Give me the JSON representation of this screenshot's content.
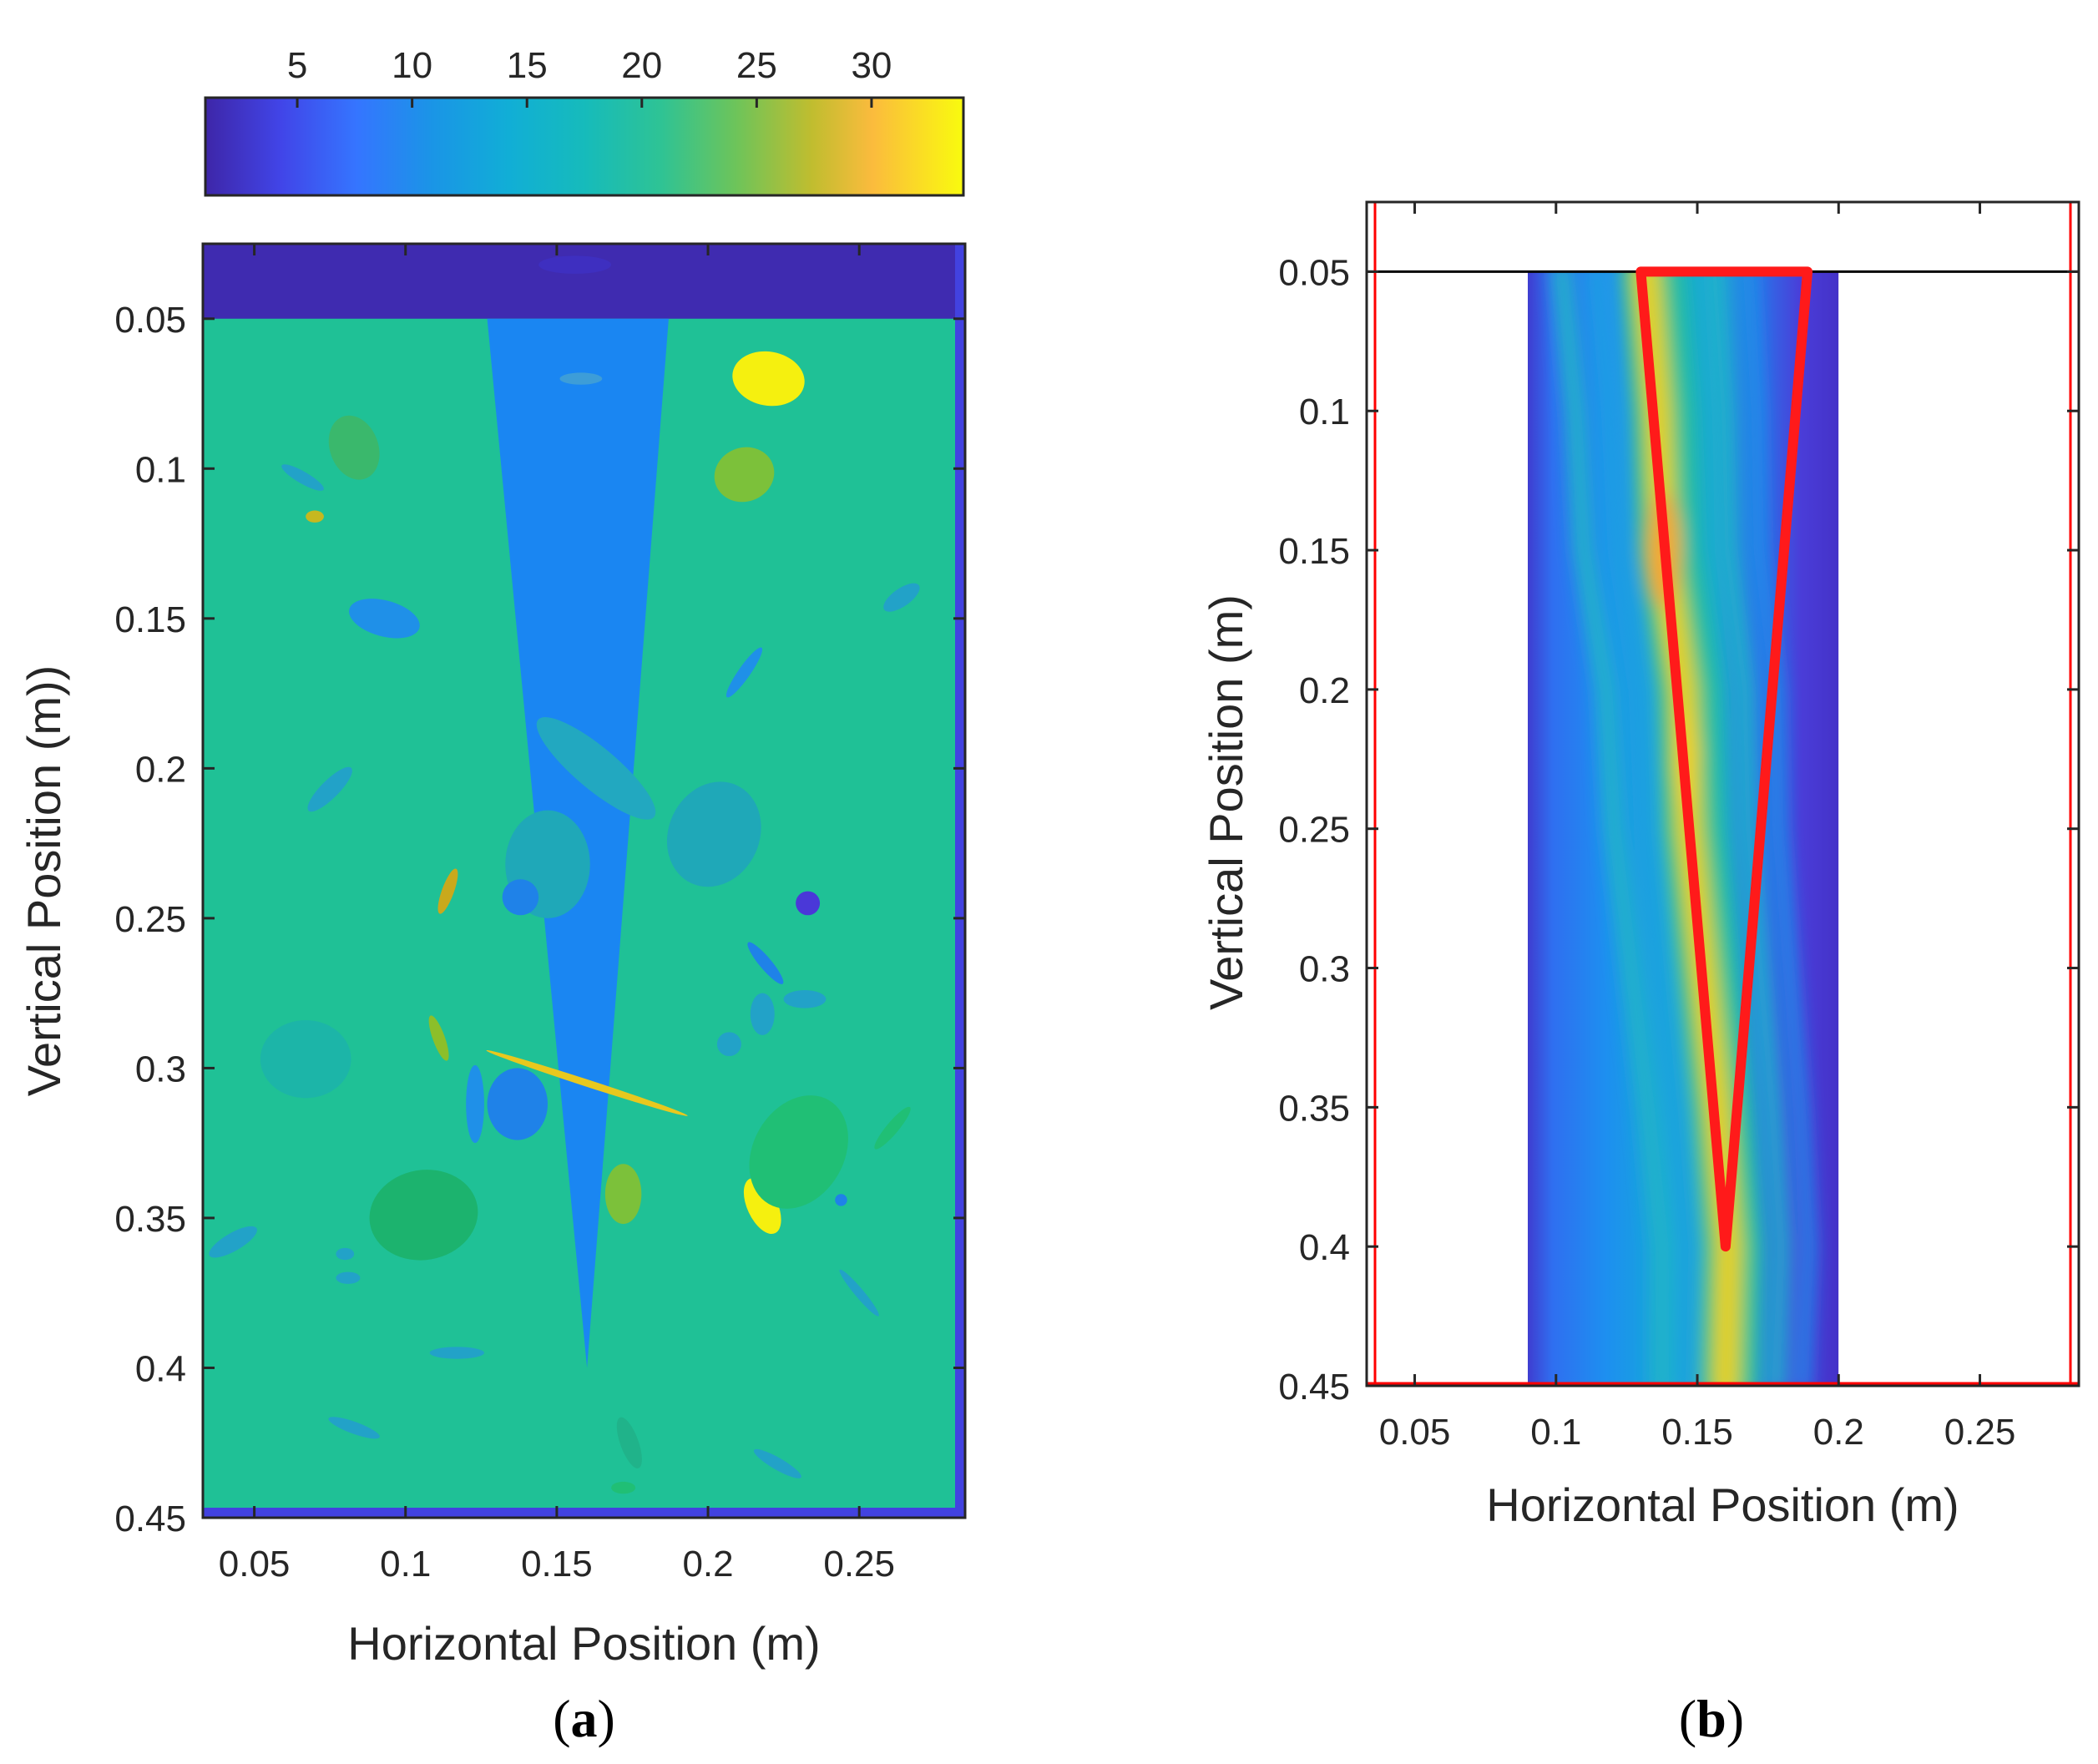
{
  "chart_data": [
    {
      "panel": "a",
      "type": "heatmap",
      "panel_label_open": "(",
      "panel_label_letter": "a",
      "panel_label_close": ")",
      "xlabel": "Horizontal Position (m)",
      "ylabel": "Vertical Position (m))",
      "xlim": [
        0.033,
        0.285
      ],
      "ylim": [
        0.45,
        0.025
      ],
      "xticks": [
        "0.05",
        "0.1",
        "0.15",
        "0.2",
        "0.25"
      ],
      "xtick_values": [
        0.05,
        0.1,
        0.15,
        0.2,
        0.25
      ],
      "yticks": [
        "0.05",
        "0.1",
        "0.15",
        "0.2",
        "0.25",
        "0.3",
        "0.35",
        "0.4",
        "0.45"
      ],
      "ytick_values": [
        0.05,
        0.1,
        0.15,
        0.2,
        0.25,
        0.3,
        0.35,
        0.4,
        0.45
      ],
      "colorbar": {
        "ticks": [
          "5",
          "10",
          "15",
          "20",
          "25",
          "30"
        ],
        "tick_values": [
          5,
          10,
          15,
          20,
          25,
          30
        ],
        "range": [
          1,
          34
        ],
        "placement": "top"
      },
      "background_value": 22,
      "top_layer": {
        "value": 3,
        "y_range": [
          0.025,
          0.05
        ]
      },
      "wedge": {
        "value": 10,
        "top_x": [
          0.127,
          0.187
        ],
        "tip": [
          0.16,
          0.4
        ]
      },
      "inclusions": [
        {
          "cx": 0.22,
          "cy": 0.07,
          "rx": 0.012,
          "ry": 0.009,
          "rot": 10,
          "color": "#f5f00f"
        },
        {
          "cx": 0.212,
          "cy": 0.102,
          "rx": 0.01,
          "ry": 0.009,
          "rot": -20,
          "color": "#7cc13a"
        },
        {
          "cx": 0.083,
          "cy": 0.093,
          "rx": 0.008,
          "ry": 0.011,
          "rot": -20,
          "color": "#3ab86c"
        },
        {
          "cx": 0.093,
          "cy": 0.15,
          "rx": 0.012,
          "ry": 0.006,
          "rot": 15,
          "color": "#1f90e8"
        },
        {
          "cx": 0.066,
          "cy": 0.103,
          "rx": 0.008,
          "ry": 0.002,
          "rot": 30,
          "color": "#22a2c8"
        },
        {
          "cx": 0.07,
          "cy": 0.116,
          "rx": 0.003,
          "ry": 0.002,
          "rot": 0,
          "color": "#c6b81f"
        },
        {
          "cx": 0.264,
          "cy": 0.143,
          "rx": 0.007,
          "ry": 0.003,
          "rot": -35,
          "color": "#22a2c8"
        },
        {
          "cx": 0.212,
          "cy": 0.168,
          "rx": 0.01,
          "ry": 0.002,
          "rot": -55,
          "color": "#1f90e8"
        },
        {
          "cx": 0.163,
          "cy": 0.2,
          "rx": 0.025,
          "ry": 0.007,
          "rot": 40,
          "color": "#22a8c0"
        },
        {
          "cx": 0.202,
          "cy": 0.222,
          "rx": 0.015,
          "ry": 0.018,
          "rot": 25,
          "color": "#1fa8b8"
        },
        {
          "cx": 0.147,
          "cy": 0.232,
          "rx": 0.014,
          "ry": 0.018,
          "rot": 0,
          "color": "#1fa8b8"
        },
        {
          "cx": 0.075,
          "cy": 0.207,
          "rx": 0.01,
          "ry": 0.003,
          "rot": -45,
          "color": "#22a2c8"
        },
        {
          "cx": 0.114,
          "cy": 0.241,
          "rx": 0.002,
          "ry": 0.008,
          "rot": 20,
          "color": "#c9a91c"
        },
        {
          "cx": 0.138,
          "cy": 0.243,
          "rx": 0.006,
          "ry": 0.006,
          "rot": 0,
          "color": "#1f82e8"
        },
        {
          "cx": 0.233,
          "cy": 0.245,
          "rx": 0.004,
          "ry": 0.004,
          "rot": 0,
          "color": "#4a38d8"
        },
        {
          "cx": 0.219,
          "cy": 0.265,
          "rx": 0.002,
          "ry": 0.009,
          "rot": -40,
          "color": "#1f82e8"
        },
        {
          "cx": 0.218,
          "cy": 0.282,
          "rx": 0.004,
          "ry": 0.007,
          "rot": 0,
          "color": "#22a2c8"
        },
        {
          "cx": 0.232,
          "cy": 0.277,
          "rx": 0.007,
          "ry": 0.003,
          "rot": 0,
          "color": "#22a2c8"
        },
        {
          "cx": 0.207,
          "cy": 0.292,
          "rx": 0.004,
          "ry": 0.004,
          "rot": 0,
          "color": "#22a2c8"
        },
        {
          "cx": 0.111,
          "cy": 0.29,
          "rx": 0.002,
          "ry": 0.008,
          "rot": -20,
          "color": "#8cbf2a"
        },
        {
          "cx": 0.123,
          "cy": 0.312,
          "rx": 0.003,
          "ry": 0.013,
          "rot": 0,
          "color": "#1f90e8"
        },
        {
          "cx": 0.137,
          "cy": 0.312,
          "rx": 0.01,
          "ry": 0.012,
          "rot": 0,
          "color": "#1f82e8"
        },
        {
          "cx": 0.067,
          "cy": 0.297,
          "rx": 0.015,
          "ry": 0.013,
          "rot": 0,
          "color": "#1cb5a8"
        },
        {
          "cx": 0.16,
          "cy": 0.305,
          "rx": 0.035,
          "ry": 0.0012,
          "rot": 18,
          "color": "#e8c81e"
        },
        {
          "cx": 0.172,
          "cy": 0.342,
          "rx": 0.006,
          "ry": 0.01,
          "rot": 0,
          "color": "#7cc13a"
        },
        {
          "cx": 0.106,
          "cy": 0.349,
          "rx": 0.018,
          "ry": 0.015,
          "rot": -10,
          "color": "#1cb36e"
        },
        {
          "cx": 0.218,
          "cy": 0.346,
          "rx": 0.005,
          "ry": 0.01,
          "rot": -25,
          "color": "#f5f00f"
        },
        {
          "cx": 0.23,
          "cy": 0.328,
          "rx": 0.015,
          "ry": 0.02,
          "rot": 30,
          "color": "#20bf75"
        },
        {
          "cx": 0.261,
          "cy": 0.32,
          "rx": 0.009,
          "ry": 0.002,
          "rot": -50,
          "color": "#20bf75"
        },
        {
          "cx": 0.244,
          "cy": 0.344,
          "rx": 0.002,
          "ry": 0.002,
          "rot": 0,
          "color": "#1f82e8"
        },
        {
          "cx": 0.043,
          "cy": 0.358,
          "rx": 0.009,
          "ry": 0.003,
          "rot": -30,
          "color": "#22a2c8"
        },
        {
          "cx": 0.081,
          "cy": 0.37,
          "rx": 0.004,
          "ry": 0.002,
          "rot": 0,
          "color": "#22a2c8"
        },
        {
          "cx": 0.08,
          "cy": 0.362,
          "rx": 0.003,
          "ry": 0.002,
          "rot": 0,
          "color": "#22a2c8"
        },
        {
          "cx": 0.25,
          "cy": 0.375,
          "rx": 0.01,
          "ry": 0.0015,
          "rot": 50,
          "color": "#22a2c8"
        },
        {
          "cx": 0.083,
          "cy": 0.42,
          "rx": 0.009,
          "ry": 0.002,
          "rot": 20,
          "color": "#22a2c8"
        },
        {
          "cx": 0.223,
          "cy": 0.432,
          "rx": 0.009,
          "ry": 0.002,
          "rot": 30,
          "color": "#22a2c8"
        },
        {
          "cx": 0.117,
          "cy": 0.395,
          "rx": 0.009,
          "ry": 0.002,
          "rot": 0,
          "color": "#22a2c8"
        },
        {
          "cx": 0.156,
          "cy": 0.032,
          "rx": 0.012,
          "ry": 0.003,
          "rot": 0,
          "color": "#3e2fc0"
        },
        {
          "cx": 0.158,
          "cy": 0.07,
          "rx": 0.007,
          "ry": 0.002,
          "rot": 0,
          "color": "#3d9dd8"
        },
        {
          "cx": 0.172,
          "cy": 0.44,
          "rx": 0.004,
          "ry": 0.002,
          "rot": 0,
          "color": "#20bf75"
        },
        {
          "cx": 0.174,
          "cy": 0.425,
          "rx": 0.003,
          "ry": 0.009,
          "rot": -20,
          "color": "#20b38a"
        }
      ]
    },
    {
      "panel": "b",
      "type": "heatmap",
      "panel_label_open": "(",
      "panel_label_letter": "b",
      "panel_label_close": ")",
      "xlabel": "Horizontal Position (m)",
      "ylabel": "Vertical Position (m)",
      "xlim": [
        0.033,
        0.285
      ],
      "ylim": [
        0.45,
        0.025
      ],
      "xticks": [
        "0.05",
        "0.1",
        "0.15",
        "0.2",
        "0.25"
      ],
      "xtick_values": [
        0.05,
        0.1,
        0.15,
        0.2,
        0.25
      ],
      "yticks": [
        "0.05",
        "0.1",
        "0.15",
        "0.2",
        "0.25",
        "0.3",
        "0.35",
        "0.4",
        "0.45"
      ],
      "ytick_values": [
        0.05,
        0.1,
        0.15,
        0.2,
        0.25,
        0.3,
        0.35,
        0.4,
        0.45
      ],
      "image_extent": {
        "x": [
          0.09,
          0.2
        ],
        "y": [
          0.05,
          0.45
        ]
      },
      "high_ridge": [
        {
          "x": 0.132,
          "y": 0.05
        },
        {
          "x": 0.136,
          "y": 0.1
        },
        {
          "x": 0.138,
          "y": 0.15
        },
        {
          "x": 0.145,
          "y": 0.2
        },
        {
          "x": 0.147,
          "y": 0.25
        },
        {
          "x": 0.152,
          "y": 0.3
        },
        {
          "x": 0.157,
          "y": 0.35
        },
        {
          "x": 0.161,
          "y": 0.4
        },
        {
          "x": 0.16,
          "y": 0.45
        }
      ],
      "reference_line_y": 0.05,
      "frame_line_color": "#ff0000",
      "outline": {
        "color": "#ff1a1a",
        "points": [
          [
            0.13,
            0.05
          ],
          [
            0.189,
            0.05
          ],
          [
            0.16,
            0.4
          ]
        ]
      }
    }
  ]
}
